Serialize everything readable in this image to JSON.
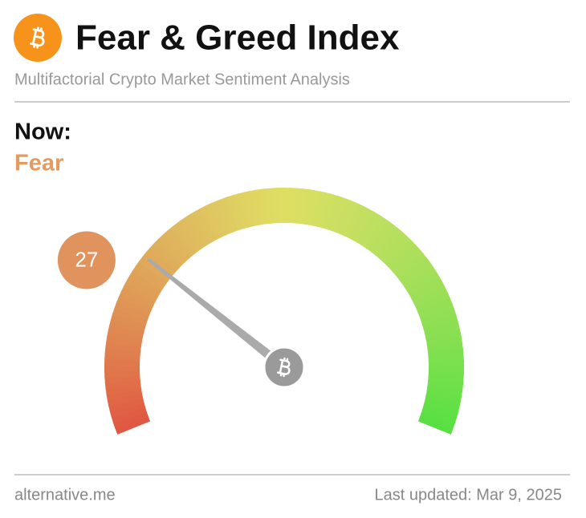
{
  "chart_data": {
    "type": "gauge",
    "title": "Fear & Greed Index",
    "subtitle": "Multifactorial Crypto Market Sentiment Analysis",
    "now_label": "Now:",
    "classification": "Fear",
    "value": 27,
    "ylim": [
      0,
      100
    ],
    "source": "alternative.me",
    "last_updated": "Last updated: Mar 9, 2025"
  }
}
